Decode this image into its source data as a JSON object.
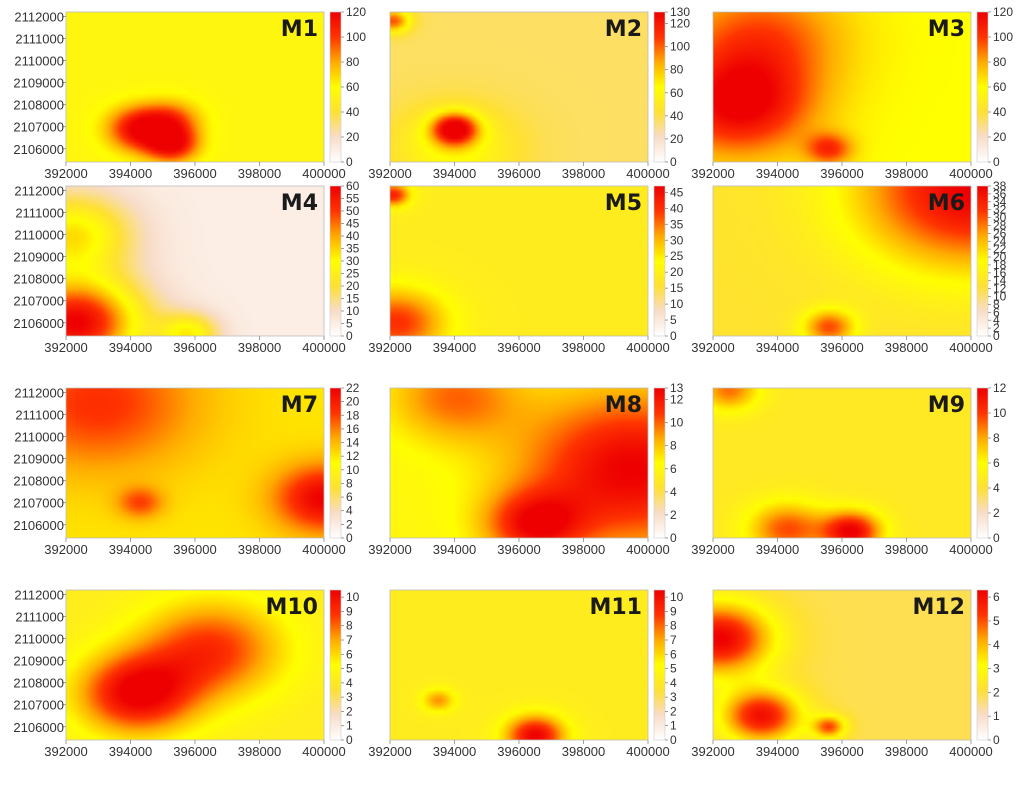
{
  "figure": {
    "description_free": true
  },
  "colormap": [
    "#ffffff",
    "#f8dcc8",
    "#ffe033",
    "#ffff00",
    "#ffaa00",
    "#ff3300",
    "#ee0000"
  ],
  "chart_data": [
    {
      "type": "heatmap",
      "title": "M1",
      "x_ticks": [
        "392000",
        "394000",
        "396000",
        "398000",
        "400000"
      ],
      "y_ticks": [
        "2112000",
        "2111000",
        "2110000",
        "2109000",
        "2108000",
        "2107000",
        "2106000"
      ],
      "xlim": [
        392000,
        400000
      ],
      "ylim": [
        2105400,
        2112200
      ],
      "colorbar": {
        "range": [
          0,
          120
        ],
        "ticks": [
          "0",
          "20",
          "40",
          "60",
          "80",
          "100",
          "120"
        ]
      },
      "base": 0.45,
      "hotspots": [
        {
          "x": 394300,
          "y": 2106900,
          "v": 1.0,
          "r": 1000
        },
        {
          "x": 395300,
          "y": 2106200,
          "v": 0.95,
          "r": 800
        },
        {
          "x": 395300,
          "y": 2107300,
          "v": 0.75,
          "r": 900
        }
      ]
    },
    {
      "type": "heatmap",
      "title": "M2",
      "x_ticks": [
        "392000",
        "394000",
        "396000",
        "398000",
        "400000"
      ],
      "y_ticks": [],
      "xlim": [
        392000,
        400000
      ],
      "ylim": [
        2105400,
        2112200
      ],
      "colorbar": {
        "range": [
          0,
          130
        ],
        "ticks": [
          "0",
          "20",
          "40",
          "60",
          "80",
          "100",
          "120",
          "130"
        ]
      },
      "base": 0.28,
      "hotspots": [
        {
          "x": 394000,
          "y": 2106900,
          "v": 1.0,
          "r": 700
        },
        {
          "x": 392100,
          "y": 2111800,
          "v": 0.8,
          "r": 500
        },
        {
          "x": 394000,
          "y": 2106000,
          "v": 0.5,
          "r": 1800
        }
      ]
    },
    {
      "type": "heatmap",
      "title": "M3",
      "x_ticks": [
        "392000",
        "394000",
        "396000",
        "398000",
        "400000"
      ],
      "y_ticks": [],
      "xlim": [
        392000,
        400000
      ],
      "ylim": [
        2105400,
        2112200
      ],
      "colorbar": {
        "range": [
          0,
          120
        ],
        "ticks": [
          "0",
          "20",
          "40",
          "60",
          "80",
          "100",
          "120"
        ]
      },
      "base": 0.5,
      "hotspots": [
        {
          "x": 392800,
          "y": 2108000,
          "v": 1.0,
          "r": 2200
        },
        {
          "x": 393500,
          "y": 2111000,
          "v": 0.8,
          "r": 2500
        },
        {
          "x": 395600,
          "y": 2106000,
          "v": 0.85,
          "r": 700
        }
      ]
    },
    {
      "type": "heatmap",
      "title": "M4",
      "x_ticks": [
        "392000",
        "394000",
        "396000",
        "398000",
        "400000"
      ],
      "y_ticks": [
        "2112000",
        "2111000",
        "2110000",
        "2109000",
        "2108000",
        "2107000",
        "2106000"
      ],
      "xlim": [
        392000,
        400000
      ],
      "ylim": [
        2105400,
        2112200
      ],
      "colorbar": {
        "range": [
          0,
          60
        ],
        "ticks": [
          "0",
          "5",
          "10",
          "15",
          "20",
          "25",
          "30",
          "35",
          "40",
          "45",
          "50",
          "55",
          "60"
        ]
      },
      "base": 0.08,
      "hotspots": [
        {
          "x": 392300,
          "y": 2106000,
          "v": 1.0,
          "r": 2000
        },
        {
          "x": 392200,
          "y": 2110000,
          "v": 0.55,
          "r": 1800
        },
        {
          "x": 395800,
          "y": 2105500,
          "v": 0.5,
          "r": 900
        }
      ]
    },
    {
      "type": "heatmap",
      "title": "M5",
      "x_ticks": [
        "392000",
        "394000",
        "396000",
        "398000",
        "400000"
      ],
      "y_ticks": [],
      "xlim": [
        392000,
        400000
      ],
      "ylim": [
        2105400,
        2112200
      ],
      "colorbar": {
        "range": [
          0,
          47
        ],
        "ticks": [
          "0",
          "5",
          "10",
          "15",
          "20",
          "25",
          "30",
          "35",
          "40",
          "45"
        ]
      },
      "base": 0.4,
      "hotspots": [
        {
          "x": 392200,
          "y": 2106000,
          "v": 0.85,
          "r": 1500
        },
        {
          "x": 392100,
          "y": 2111800,
          "v": 0.9,
          "r": 500
        }
      ]
    },
    {
      "type": "heatmap",
      "title": "M6",
      "x_ticks": [
        "392000",
        "394000",
        "396000",
        "398000",
        "400000"
      ],
      "y_ticks": [],
      "xlim": [
        392000,
        400000
      ],
      "ylim": [
        2105400,
        2112200
      ],
      "colorbar": {
        "range": [
          0,
          38
        ],
        "ticks": [
          "0",
          "2",
          "4",
          "6",
          "8",
          "10",
          "12",
          "14",
          "16",
          "18",
          "20",
          "22",
          "24",
          "26",
          "28",
          "30",
          "32",
          "34",
          "36",
          "38"
        ]
      },
      "base": 0.35,
      "hotspots": [
        {
          "x": 400000,
          "y": 2112000,
          "v": 1.0,
          "r": 3500
        },
        {
          "x": 395600,
          "y": 2105800,
          "v": 0.8,
          "r": 800
        }
      ]
    },
    {
      "type": "heatmap",
      "title": "M7",
      "x_ticks": [
        "392000",
        "394000",
        "396000",
        "398000",
        "400000"
      ],
      "y_ticks": [
        "2112000",
        "2111000",
        "2110000",
        "2109000",
        "2108000",
        "2107000",
        "2106000"
      ],
      "xlim": [
        392000,
        400000
      ],
      "ylim": [
        2105400,
        2112200
      ],
      "colorbar": {
        "range": [
          0,
          22
        ],
        "ticks": [
          "0",
          "2",
          "4",
          "6",
          "8",
          "10",
          "12",
          "14",
          "16",
          "18",
          "20",
          "22"
        ]
      },
      "base": 0.55,
      "hotspots": [
        {
          "x": 400000,
          "y": 2107200,
          "v": 1.0,
          "r": 1500
        },
        {
          "x": 393000,
          "y": 2111500,
          "v": 0.85,
          "r": 3000
        },
        {
          "x": 394300,
          "y": 2107000,
          "v": 0.8,
          "r": 700
        }
      ]
    },
    {
      "type": "heatmap",
      "title": "M8",
      "x_ticks": [
        "392000",
        "394000",
        "396000",
        "398000",
        "400000"
      ],
      "y_ticks": [],
      "xlim": [
        392000,
        400000
      ],
      "ylim": [
        2105400,
        2112200
      ],
      "colorbar": {
        "range": [
          0,
          13
        ],
        "ticks": [
          "0",
          "2",
          "4",
          "6",
          "8",
          "10",
          "12",
          "13"
        ]
      },
      "base": 0.45,
      "hotspots": [
        {
          "x": 399500,
          "y": 2108500,
          "v": 1.0,
          "r": 3500
        },
        {
          "x": 396500,
          "y": 2106000,
          "v": 0.9,
          "r": 1500
        },
        {
          "x": 394000,
          "y": 2111800,
          "v": 0.75,
          "r": 2000
        }
      ]
    },
    {
      "type": "heatmap",
      "title": "M9",
      "x_ticks": [
        "392000",
        "394000",
        "396000",
        "398000",
        "400000"
      ],
      "y_ticks": [],
      "xlim": [
        392000,
        400000
      ],
      "ylim": [
        2105400,
        2112200
      ],
      "colorbar": {
        "range": [
          0,
          12
        ],
        "ticks": [
          "0",
          "2",
          "4",
          "6",
          "8",
          "10",
          "12"
        ]
      },
      "base": 0.38,
      "hotspots": [
        {
          "x": 396300,
          "y": 2105700,
          "v": 1.0,
          "r": 900
        },
        {
          "x": 394300,
          "y": 2105800,
          "v": 0.8,
          "r": 1200
        },
        {
          "x": 392500,
          "y": 2112100,
          "v": 0.75,
          "r": 900
        }
      ]
    },
    {
      "type": "heatmap",
      "title": "M10",
      "x_ticks": [
        "392000",
        "394000",
        "396000",
        "398000",
        "400000"
      ],
      "y_ticks": [
        "2112000",
        "2111000",
        "2110000",
        "2109000",
        "2108000",
        "2107000",
        "2106000"
      ],
      "xlim": [
        392000,
        400000
      ],
      "ylim": [
        2105400,
        2112200
      ],
      "colorbar": {
        "range": [
          0,
          10.5
        ],
        "ticks": [
          "0",
          "1",
          "2",
          "3",
          "4",
          "5",
          "6",
          "7",
          "8",
          "9",
          "10"
        ]
      },
      "base": 0.4,
      "hotspots": [
        {
          "x": 394200,
          "y": 2107500,
          "v": 1.0,
          "r": 1800
        },
        {
          "x": 396500,
          "y": 2109500,
          "v": 0.85,
          "r": 2200
        }
      ]
    },
    {
      "type": "heatmap",
      "title": "M11",
      "x_ticks": [
        "392000",
        "394000",
        "396000",
        "398000",
        "400000"
      ],
      "y_ticks": [],
      "xlim": [
        392000,
        400000
      ],
      "ylim": [
        2105400,
        2112200
      ],
      "colorbar": {
        "range": [
          0,
          10.5
        ],
        "ticks": [
          "0",
          "1",
          "2",
          "3",
          "4",
          "5",
          "6",
          "7",
          "8",
          "9",
          "10"
        ]
      },
      "base": 0.4,
      "hotspots": [
        {
          "x": 396500,
          "y": 2105600,
          "v": 1.0,
          "r": 900
        },
        {
          "x": 393500,
          "y": 2107200,
          "v": 0.7,
          "r": 500
        }
      ]
    },
    {
      "type": "heatmap",
      "title": "M12",
      "x_ticks": [
        "392000",
        "394000",
        "396000",
        "398000",
        "400000"
      ],
      "y_ticks": [],
      "xlim": [
        392000,
        400000
      ],
      "ylim": [
        2105400,
        2112200
      ],
      "colorbar": {
        "range": [
          0,
          6.3
        ],
        "ticks": [
          "0",
          "1",
          "2",
          "3",
          "4",
          "5",
          "6"
        ]
      },
      "base": 0.3,
      "hotspots": [
        {
          "x": 392200,
          "y": 2110000,
          "v": 1.0,
          "r": 1600
        },
        {
          "x": 393500,
          "y": 2106500,
          "v": 0.95,
          "r": 1200
        },
        {
          "x": 395600,
          "y": 2106000,
          "v": 0.8,
          "r": 500
        }
      ]
    }
  ]
}
